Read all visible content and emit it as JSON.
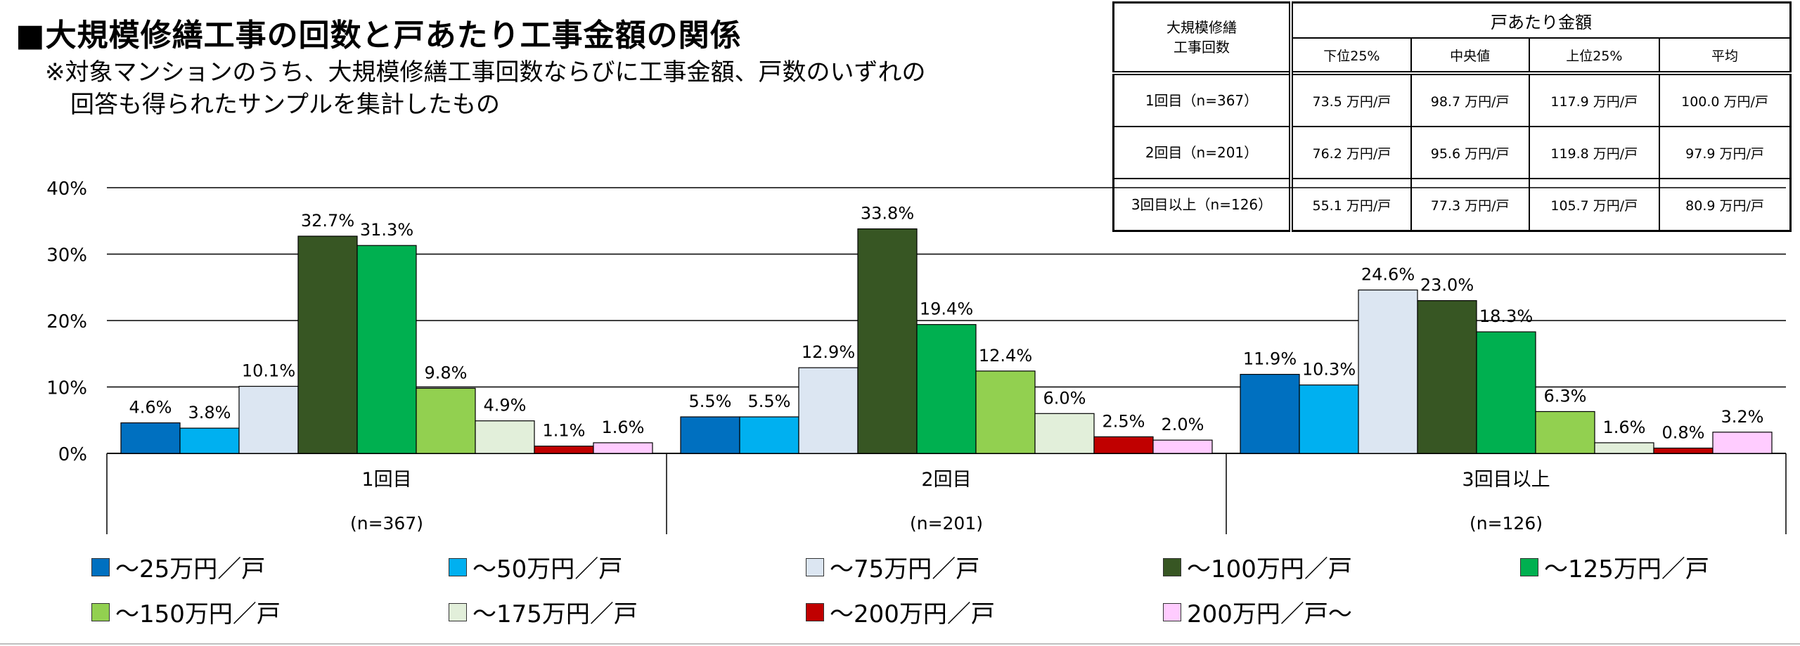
{
  "title": "■大規模修繕工事の回数と戸あたり工事金額の関係",
  "note": {
    "line1": "※対象マンションのうち、大規模修繕工事回数ならびに工事金額、戸数のいずれの",
    "line2": "回答も得られたサンプルを集計したもの"
  },
  "summary_table": {
    "stub_line1": "大規模修繕",
    "stub_line2": "工事回数",
    "group_header": "戸あたり金額",
    "columns": [
      "下位25%",
      "中央値",
      "上位25%",
      "平均"
    ],
    "rows": [
      {
        "label": "1回目（n=367）",
        "cells": [
          "73.5 万円/戸",
          "98.7 万円/戸",
          "117.9 万円/戸",
          "100.0 万円/戸"
        ]
      },
      {
        "label": "2回目（n=201）",
        "cells": [
          "76.2 万円/戸",
          "95.6 万円/戸",
          "119.8 万円/戸",
          "97.9 万円/戸"
        ]
      },
      {
        "label": "3回目以上（n=126）",
        "cells": [
          "55.1 万円/戸",
          "77.3 万円/戸",
          "105.7 万円/戸",
          "80.9 万円/戸"
        ]
      }
    ]
  },
  "chart_data": {
    "type": "bar",
    "title": "",
    "xlabel": "",
    "ylabel": "",
    "ylim": [
      0,
      40
    ],
    "yticks": [
      "0%",
      "10%",
      "20%",
      "30%",
      "40%"
    ],
    "grid": true,
    "legend_position": "bottom",
    "categories": [
      "1回目",
      "2回目",
      "3回目以上"
    ],
    "category_sublabels": [
      "(n=367)",
      "(n=201)",
      "(n=126)"
    ],
    "series": [
      {
        "name": "～25万円／戸",
        "color": "#0070c0",
        "values": [
          4.6,
          5.5,
          11.9
        ],
        "labels": [
          "4.6%",
          "5.5%",
          "11.9%"
        ]
      },
      {
        "name": "～50万円／戸",
        "color": "#00b0f0",
        "values": [
          3.8,
          5.5,
          10.3
        ],
        "labels": [
          "3.8%",
          "5.5%",
          "10.3%"
        ]
      },
      {
        "name": "～75万円／戸",
        "color": "#dce6f2",
        "values": [
          10.1,
          12.9,
          24.6
        ],
        "labels": [
          "10.1%",
          "12.9%",
          "24.6%"
        ]
      },
      {
        "name": "～100万円／戸",
        "color": "#375623",
        "values": [
          32.7,
          33.8,
          23.0
        ],
        "labels": [
          "32.7%",
          "33.8%",
          "23.0%"
        ]
      },
      {
        "name": "～125万円／戸",
        "color": "#00b050",
        "values": [
          31.3,
          19.4,
          18.3
        ],
        "labels": [
          "31.3%",
          "19.4%",
          "18.3%"
        ]
      },
      {
        "name": "～150万円／戸",
        "color": "#92d050",
        "values": [
          9.8,
          12.4,
          6.3
        ],
        "labels": [
          "9.8%",
          "12.4%",
          "6.3%"
        ]
      },
      {
        "name": "～175万円／戸",
        "color": "#e2efda",
        "values": [
          4.9,
          6.0,
          1.6
        ],
        "labels": [
          "4.9%",
          "6.0%",
          "1.6%"
        ]
      },
      {
        "name": "～200万円／戸",
        "color": "#c00000",
        "values": [
          1.1,
          2.5,
          0.8
        ],
        "labels": [
          "1.1%",
          "2.5%",
          "0.8%"
        ]
      },
      {
        "name": "200万円／戸～",
        "color": "#ffccff",
        "values": [
          1.6,
          2.0,
          3.2
        ],
        "labels": [
          "1.6%",
          "2.0%",
          "3.2%"
        ]
      }
    ]
  }
}
